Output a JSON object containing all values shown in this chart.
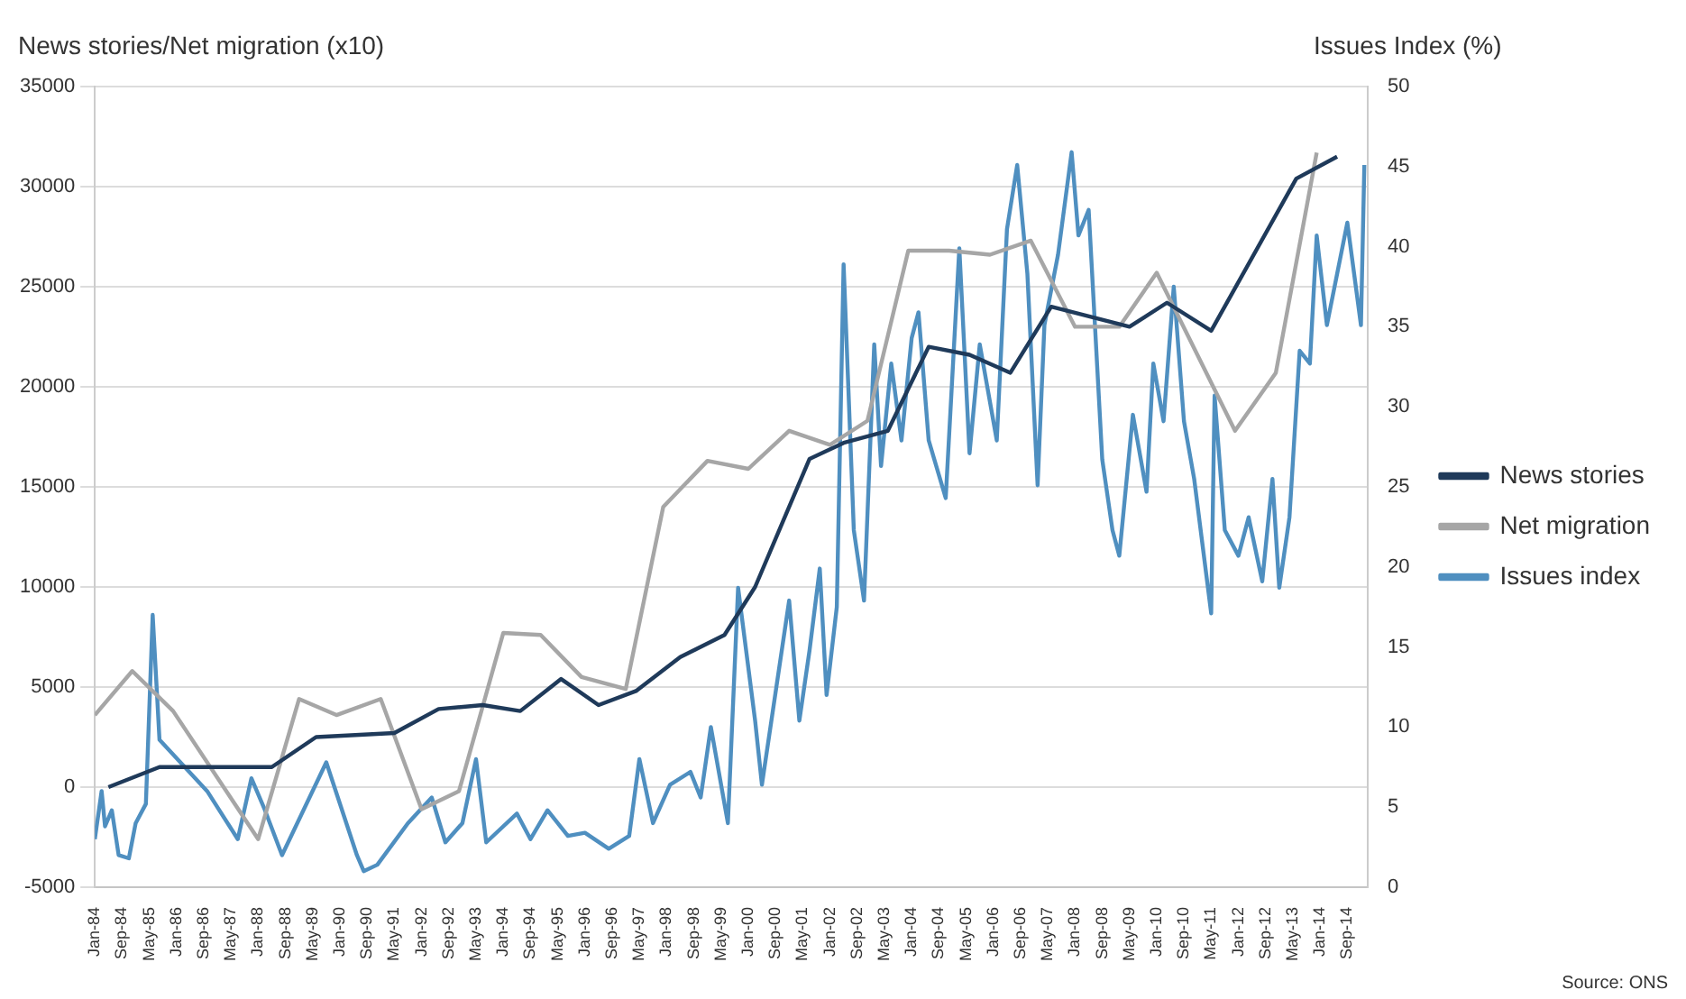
{
  "chart_data": {
    "type": "line",
    "ylabel": "News stories/Net migration (x10)",
    "y2label": "Issues Index (%)",
    "annotations": [
      "Source: ONS"
    ],
    "xlim": [
      "1984-01",
      "2015-03"
    ],
    "xticks": [
      {
        "value": "1984-01",
        "label": "Jan-84"
      },
      {
        "value": "1984-09",
        "label": "Sep-84"
      },
      {
        "value": "1985-05",
        "label": "May-85"
      },
      {
        "value": "1986-01",
        "label": "Jan-86"
      },
      {
        "value": "1986-09",
        "label": "Sep-86"
      },
      {
        "value": "1987-05",
        "label": "May-87"
      },
      {
        "value": "1988-01",
        "label": "Jan-88"
      },
      {
        "value": "1988-09",
        "label": "Sep-88"
      },
      {
        "value": "1989-05",
        "label": "May-89"
      },
      {
        "value": "1990-01",
        "label": "Jan-90"
      },
      {
        "value": "1990-09",
        "label": "Sep-90"
      },
      {
        "value": "1991-05",
        "label": "May-91"
      },
      {
        "value": "1992-01",
        "label": "Jan-92"
      },
      {
        "value": "1992-09",
        "label": "Sep-92"
      },
      {
        "value": "1993-05",
        "label": "May-93"
      },
      {
        "value": "1994-01",
        "label": "Jan-94"
      },
      {
        "value": "1994-09",
        "label": "Sep-94"
      },
      {
        "value": "1995-05",
        "label": "May-95"
      },
      {
        "value": "1996-01",
        "label": "Jan-96"
      },
      {
        "value": "1996-09",
        "label": "Sep-96"
      },
      {
        "value": "1997-05",
        "label": "May-97"
      },
      {
        "value": "1998-01",
        "label": "Jan-98"
      },
      {
        "value": "1998-09",
        "label": "Sep-98"
      },
      {
        "value": "1999-05",
        "label": "May-99"
      },
      {
        "value": "2000-01",
        "label": "Jan-00"
      },
      {
        "value": "2000-09",
        "label": "Sep-00"
      },
      {
        "value": "2001-05",
        "label": "May-01"
      },
      {
        "value": "2002-01",
        "label": "Jan-02"
      },
      {
        "value": "2002-09",
        "label": "Sep-02"
      },
      {
        "value": "2003-05",
        "label": "May-03"
      },
      {
        "value": "2004-01",
        "label": "Jan-04"
      },
      {
        "value": "2004-09",
        "label": "Sep-04"
      },
      {
        "value": "2005-05",
        "label": "May-05"
      },
      {
        "value": "2006-01",
        "label": "Jan-06"
      },
      {
        "value": "2006-09",
        "label": "Sep-06"
      },
      {
        "value": "2007-05",
        "label": "May-07"
      },
      {
        "value": "2008-01",
        "label": "Jan-08"
      },
      {
        "value": "2008-09",
        "label": "Sep-08"
      },
      {
        "value": "2009-05",
        "label": "May-09"
      },
      {
        "value": "2010-01",
        "label": "Jan-10"
      },
      {
        "value": "2010-09",
        "label": "Sep-10"
      },
      {
        "value": "2011-05",
        "label": "May-11"
      },
      {
        "value": "2012-01",
        "label": "Jan-12"
      },
      {
        "value": "2012-09",
        "label": "Sep-12"
      },
      {
        "value": "2013-05",
        "label": "May-13"
      },
      {
        "value": "2014-01",
        "label": "Jan-14"
      },
      {
        "value": "2014-09",
        "label": "Sep-14"
      }
    ],
    "ylim": [
      -5000,
      35000
    ],
    "yticks": [
      -5000,
      0,
      5000,
      10000,
      15000,
      20000,
      25000,
      30000,
      35000
    ],
    "y2lim": [
      0,
      50
    ],
    "y2ticks": [
      0,
      5,
      10,
      15,
      20,
      25,
      30,
      35,
      40,
      45,
      50
    ],
    "grid": "y",
    "legend": "right",
    "marker": "none",
    "series": [
      {
        "name": "News stories",
        "color": "#1f3a5a",
        "x": [
          "1984-05",
          "1985-08",
          "1988-05",
          "1989-06",
          "1991-05",
          "1992-06",
          "1993-07",
          "1994-06",
          "1995-06",
          "1996-05",
          "1997-04",
          "1998-05",
          "1999-06",
          "2000-03",
          "2000-11",
          "2001-07",
          "2002-05",
          "2003-06",
          "2004-06",
          "2005-06",
          "2006-06",
          "2007-06",
          "2009-05",
          "2010-04",
          "2011-05",
          "2013-06",
          "2014-06"
        ],
        "values": [
          0,
          1000,
          1000,
          2500,
          2700,
          3900,
          4100,
          3800,
          5400,
          4100,
          4800,
          6500,
          7600,
          10000,
          13200,
          16400,
          17200,
          17800,
          22000,
          21600,
          20700,
          24000,
          23000,
          24200,
          22800,
          30400,
          31500
        ]
      },
      {
        "name": "Net migration",
        "color": "#a6a6a6",
        "x": [
          "1984-01",
          "1984-12",
          "1985-12",
          "1988-01",
          "1989-01",
          "1989-12",
          "1991-01",
          "1992-01",
          "1992-12",
          "1994-01",
          "1994-12",
          "1995-12",
          "1997-01",
          "1997-12",
          "1999-01",
          "2000-01",
          "2001-01",
          "2002-01",
          "2002-12",
          "2003-12",
          "2004-12",
          "2005-12",
          "2006-12",
          "2008-01",
          "2009-02",
          "2010-01",
          "2011-12",
          "2012-12",
          "2013-12"
        ],
        "values": [
          3600,
          5800,
          3800,
          -2600,
          4400,
          3600,
          4400,
          -1100,
          -200,
          7700,
          7600,
          5500,
          4900,
          14000,
          16300,
          15900,
          17800,
          17100,
          18300,
          26800,
          26800,
          26600,
          27300,
          23000,
          23000,
          25700,
          17800,
          20700,
          31700
        ]
      },
      {
        "name": "Issues index",
        "color": "#4f8fc0",
        "axis": "y2",
        "x": [
          "1984-01",
          "1984-03",
          "1984-04",
          "1984-06",
          "1984-08",
          "1984-11",
          "1985-01",
          "1985-04",
          "1985-06",
          "1985-08",
          "1986-03",
          "1986-10",
          "1987-07",
          "1987-11",
          "1988-03",
          "1988-08",
          "1989-09",
          "1990-06",
          "1990-08",
          "1990-12",
          "1991-09",
          "1992-04",
          "1992-08",
          "1993-01",
          "1993-05",
          "1993-08",
          "1994-05",
          "1994-09",
          "1995-02",
          "1995-08",
          "1996-01",
          "1996-08",
          "1997-02",
          "1997-05",
          "1997-09",
          "1998-02",
          "1998-08",
          "1998-11",
          "1999-02",
          "1999-07",
          "1999-10",
          "2000-03",
          "2000-05",
          "2001-01",
          "2001-04",
          "2001-07",
          "2001-10",
          "2001-12",
          "2002-03",
          "2002-05",
          "2002-08",
          "2002-11",
          "2003-02",
          "2003-04",
          "2003-07",
          "2003-10",
          "2004-01",
          "2004-03",
          "2004-06",
          "2004-11",
          "2005-03",
          "2005-06",
          "2005-09",
          "2006-02",
          "2006-05",
          "2006-08",
          "2006-11",
          "2007-02",
          "2007-04",
          "2007-08",
          "2007-12",
          "2008-02",
          "2008-05",
          "2008-09",
          "2008-12",
          "2009-02",
          "2009-06",
          "2009-10",
          "2009-12",
          "2010-03",
          "2010-06",
          "2010-09",
          "2010-12",
          "2011-05",
          "2011-06",
          "2011-09",
          "2012-01",
          "2012-04",
          "2012-08",
          "2012-11",
          "2013-01",
          "2013-04",
          "2013-07",
          "2013-10",
          "2013-12",
          "2014-03",
          "2014-06",
          "2014-09",
          "2015-01",
          "2015-02"
        ],
        "values": [
          3,
          6,
          3.8,
          4.8,
          2,
          1.8,
          4,
          5.2,
          17,
          9.2,
          7.6,
          6,
          3,
          6.8,
          4.8,
          2,
          7.8,
          2,
          1,
          1.4,
          4,
          5.6,
          2.8,
          4,
          8,
          2.8,
          4.6,
          3,
          4.8,
          3.2,
          3.4,
          2.4,
          3.2,
          8,
          4,
          6.4,
          7.2,
          5.6,
          10,
          4,
          18.7,
          10.4,
          6.4,
          17.9,
          10.4,
          14.8,
          19.9,
          12,
          17.5,
          38.9,
          22.3,
          17.9,
          33.9,
          26.3,
          32.7,
          27.9,
          34.3,
          35.9,
          27.9,
          24.3,
          39.9,
          27.1,
          33.9,
          27.9,
          41.1,
          45.1,
          38.3,
          25.1,
          35.1,
          39.5,
          45.9,
          40.7,
          42.3,
          26.7,
          22.3,
          20.7,
          29.5,
          24.7,
          32.7,
          29.1,
          37.5,
          29.1,
          25.5,
          17.1,
          30.7,
          22.3,
          20.7,
          23.1,
          19.1,
          25.5,
          18.7,
          23.1,
          33.5,
          32.7,
          40.7,
          35.1,
          38.3,
          41.5,
          35.1,
          45.1
        ]
      }
    ]
  }
}
